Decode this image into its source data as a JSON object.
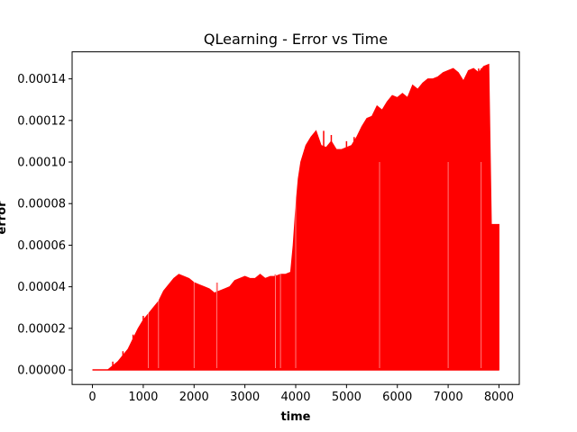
{
  "chart_data": {
    "type": "line",
    "title": "QLearning - Error vs Time",
    "xlabel": "time",
    "ylabel": "error",
    "xlim": [
      -400,
      8400
    ],
    "ylim": [
      -7e-06,
      0.000153
    ],
    "x_ticks": [
      0,
      1000,
      2000,
      3000,
      4000,
      5000,
      6000,
      7000,
      8000
    ],
    "x_tick_labels": [
      "0",
      "1000",
      "2000",
      "3000",
      "4000",
      "5000",
      "6000",
      "7000",
      "8000"
    ],
    "y_ticks": [
      0,
      2e-05,
      4e-05,
      6e-05,
      8e-05,
      0.0001,
      0.00012,
      0.00014
    ],
    "y_tick_labels": [
      "0.00000",
      "0.00002",
      "0.00004",
      "0.00006",
      "0.00008",
      "0.00010",
      "0.00012",
      "0.00014"
    ],
    "grid": false,
    "series": [
      {
        "color": "#ff0000",
        "fill_to_zero": true,
        "upper_envelope": {
          "x": [
            0,
            300,
            400,
            500,
            600,
            700,
            800,
            900,
            1000,
            1100,
            1200,
            1300,
            1400,
            1500,
            1600,
            1700,
            1800,
            1900,
            2000,
            2100,
            2200,
            2300,
            2400,
            2500,
            2600,
            2700,
            2800,
            2900,
            3000,
            3100,
            3200,
            3300,
            3400,
            3500,
            3600,
            3700,
            3800,
            3900,
            3950,
            4000,
            4050,
            4100,
            4200,
            4300,
            4400,
            4500,
            4600,
            4700,
            4800,
            4900,
            5000,
            5100,
            5200,
            5300,
            5400,
            5500,
            5600,
            5700,
            5800,
            5900,
            6000,
            6100,
            6200,
            6300,
            6400,
            6500,
            6600,
            6700,
            6800,
            6900,
            7000,
            7100,
            7200,
            7300,
            7400,
            7500,
            7600,
            7700,
            7800,
            7850,
            7900,
            8000
          ],
          "y": [
            0,
            0,
            2e-06,
            4e-06,
            7e-06,
            1e-05,
            1.5e-05,
            2e-05,
            2.4e-05,
            2.7e-05,
            3e-05,
            3.3e-05,
            3.8e-05,
            4.1e-05,
            4.4e-05,
            4.6e-05,
            4.5e-05,
            4.4e-05,
            4.2e-05,
            4.1e-05,
            4e-05,
            3.9e-05,
            3.7e-05,
            3.8e-05,
            3.9e-05,
            4e-05,
            4.3e-05,
            4.4e-05,
            4.5e-05,
            4.4e-05,
            4.4e-05,
            4.6e-05,
            4.4e-05,
            4.5e-05,
            4.5e-05,
            4.6e-05,
            4.6e-05,
            4.7e-05,
            6e-05,
            7.8e-05,
            9.2e-05,
            0.0001,
            0.000108,
            0.000112,
            0.000115,
            0.000108,
            0.000107,
            0.00011,
            0.000106,
            0.000106,
            0.000107,
            0.000108,
            0.000112,
            0.000117,
            0.000121,
            0.000122,
            0.000127,
            0.000125,
            0.000129,
            0.000132,
            0.000131,
            0.000133,
            0.000131,
            0.000137,
            0.000135,
            0.000138,
            0.00014,
            0.00014,
            0.000141,
            0.000143,
            0.000144,
            0.000145,
            0.000143,
            0.000139,
            0.000144,
            0.000145,
            0.000143,
            0.000146,
            0.000147,
            7e-05,
            7e-05,
            7e-05
          ]
        },
        "spikes": {
          "x": [
            400,
            600,
            800,
            1000,
            1250,
            1300,
            2000,
            2450,
            2700,
            3600,
            4550,
            4700,
            5000,
            5150,
            5300,
            5450,
            5700,
            6200,
            6300,
            6450,
            6500,
            6700,
            6900,
            7100,
            7400,
            7500,
            7600,
            7650
          ],
          "y": [
            4e-06,
            9e-06,
            1.7e-05,
            2.6e-05,
            3e-05,
            3e-05,
            4e-05,
            4.2e-05,
            4e-05,
            4.6e-05,
            0.000115,
            0.000113,
            0.00011,
            0.000112,
            0.000116,
            0.000117,
            0.000123,
            0.000128,
            0.00013,
            0.000136,
            0.000133,
            0.000137,
            0.00014,
            0.000145,
            0.000144,
            0.000143,
            0.000145,
            0.000145
          ]
        },
        "gaps_x": [
          1100,
          1300,
          2000,
          2450,
          3600,
          3700,
          4000,
          5650,
          7000,
          7650
        ]
      }
    ]
  }
}
